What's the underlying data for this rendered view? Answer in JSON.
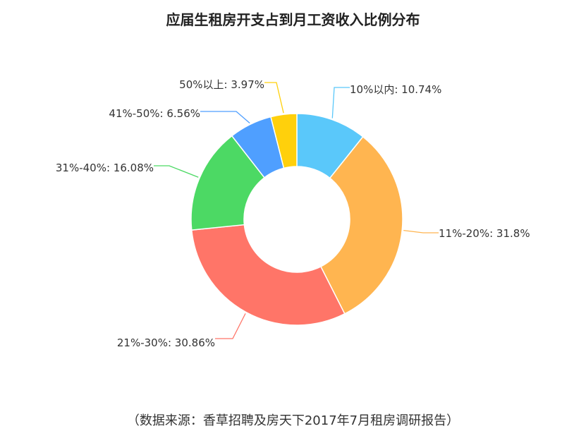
{
  "chart_data": {
    "type": "pie",
    "title": "应届生租房开支占到月工资收入比例分布",
    "source": "（数据来源：香草招聘及房天下2017年7月租房调研报告）",
    "donut": true,
    "slices": [
      {
        "label": "10%以内",
        "value": 10.74,
        "display": "10%以内: 10.74%",
        "color": "#5AC8FA"
      },
      {
        "label": "11%-20%",
        "value": 31.8,
        "display": "11%-20%: 31.8%",
        "color": "#FFB550"
      },
      {
        "label": "21%-30%",
        "value": 30.86,
        "display": "21%-30%: 30.86%",
        "color": "#FF7568"
      },
      {
        "label": "31%-40%",
        "value": 16.08,
        "display": "31%-40%: 16.08%",
        "color": "#4CD964"
      },
      {
        "label": "41%-50%",
        "value": 6.56,
        "display": "41%-50%: 6.56%",
        "color": "#4F9FFF"
      },
      {
        "label": "50%以上",
        "value": 3.97,
        "display": "50%以上: 3.97%",
        "color": "#FFD00C"
      }
    ]
  }
}
